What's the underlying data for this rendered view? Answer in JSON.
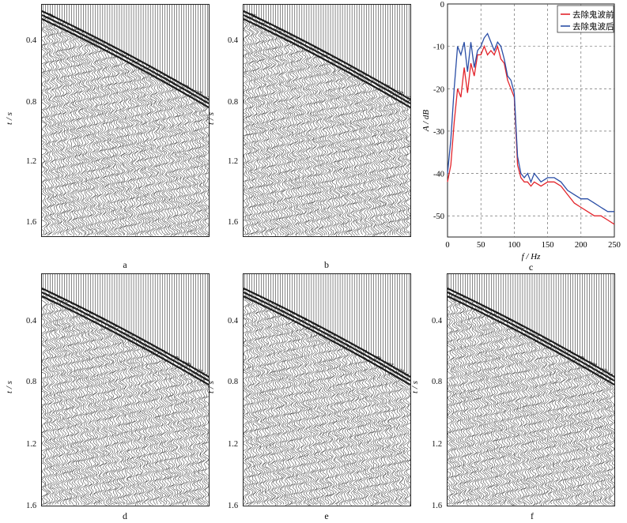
{
  "panels": [
    {
      "id": "a",
      "label": "a",
      "ylabel": "t / s",
      "yticks": [
        "0.4",
        "0.8",
        "1.2",
        "1.6"
      ]
    },
    {
      "id": "b",
      "label": "b",
      "ylabel": "t / s",
      "yticks": [
        "0.4",
        "0.8",
        "1.2",
        "1.6"
      ]
    },
    {
      "id": "d",
      "label": "d",
      "ylabel": "t / s",
      "yticks": [
        "0.4",
        "0.8",
        "1.2",
        "1.6"
      ]
    },
    {
      "id": "e",
      "label": "e",
      "ylabel": "t / s",
      "yticks": [
        "0.4",
        "0.8",
        "1.2",
        "1.6"
      ]
    },
    {
      "id": "f",
      "label": "f",
      "ylabel": "t / s",
      "yticks": [
        "0.4",
        "0.8",
        "1.2",
        "1.6"
      ]
    }
  ],
  "chart_data": {
    "type": "line",
    "label": "c",
    "xlabel": "f / Hz",
    "ylabel": "A / dB",
    "xlim": [
      0,
      250
    ],
    "ylim": [
      -55,
      0
    ],
    "xticks": [
      0,
      50,
      100,
      150,
      200,
      250
    ],
    "yticks": [
      0,
      -10,
      -20,
      -30,
      -40,
      -50
    ],
    "grid": true,
    "legend_position": "top-right",
    "series": [
      {
        "name": "去除鬼波前",
        "color": "#e3242b",
        "x": [
          0,
          5,
          10,
          15,
          20,
          25,
          30,
          35,
          40,
          45,
          50,
          55,
          60,
          65,
          70,
          75,
          80,
          85,
          90,
          95,
          100,
          105,
          110,
          115,
          120,
          125,
          130,
          140,
          150,
          160,
          170,
          180,
          190,
          200,
          210,
          220,
          230,
          240,
          250
        ],
        "y": [
          -42,
          -38,
          -28,
          -20,
          -22,
          -15,
          -21,
          -14,
          -17,
          -12,
          -12,
          -10,
          -12,
          -11,
          -12,
          -10,
          -13,
          -14,
          -18,
          -20,
          -22,
          -38,
          -41,
          -42,
          -42,
          -43,
          -42,
          -43,
          -42,
          -42,
          -43,
          -45,
          -47,
          -48,
          -49,
          -50,
          -50,
          -51,
          -52
        ]
      },
      {
        "name": "去除鬼波后",
        "color": "#2a4ea6",
        "x": [
          0,
          5,
          10,
          15,
          20,
          25,
          30,
          35,
          40,
          45,
          50,
          55,
          60,
          65,
          70,
          75,
          80,
          85,
          90,
          95,
          100,
          105,
          110,
          115,
          120,
          125,
          130,
          140,
          150,
          160,
          170,
          180,
          190,
          200,
          210,
          220,
          230,
          240,
          250
        ],
        "y": [
          -40,
          -32,
          -20,
          -10,
          -12,
          -9,
          -16,
          -9,
          -15,
          -11,
          -10,
          -8,
          -7,
          -9,
          -11,
          -9,
          -10,
          -13,
          -17,
          -18,
          -21,
          -36,
          -40,
          -41,
          -40,
          -42,
          -40,
          -42,
          -41,
          -41,
          -42,
          -44,
          -45,
          -46,
          -46,
          -47,
          -48,
          -49,
          -49
        ]
      }
    ]
  }
}
